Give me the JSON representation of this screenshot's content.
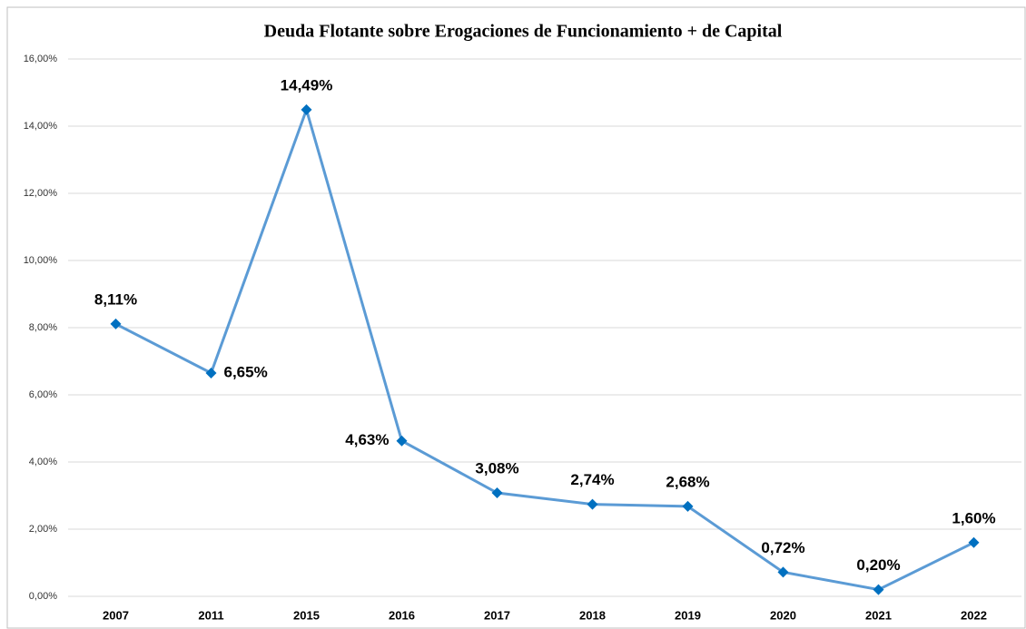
{
  "chart_data": {
    "type": "line",
    "title": "Deuda Flotante sobre Erogaciones de Funcionamiento + de Capital",
    "categories": [
      "2007",
      "2011",
      "2015",
      "2016",
      "2017",
      "2018",
      "2019",
      "2020",
      "2021",
      "2022"
    ],
    "series": [
      {
        "name": "Deuda Flotante",
        "color": "#5b9bd5",
        "values": [
          8.11,
          6.65,
          14.49,
          4.63,
          3.08,
          2.74,
          2.68,
          0.72,
          0.2,
          1.6
        ],
        "value_labels": [
          "8,11%",
          "6,65%",
          "14,49%",
          "4,63%",
          "3,08%",
          "2,74%",
          "2,68%",
          "0,72%",
          "0,20%",
          "1,60%"
        ]
      }
    ],
    "marker_color": "#0070c0",
    "ylim": [
      0,
      16
    ],
    "yticks": [
      {
        "value": 0,
        "label": "0,00%"
      },
      {
        "value": 2,
        "label": "2,00%"
      },
      {
        "value": 4,
        "label": "4,00%"
      },
      {
        "value": 6,
        "label": "6,00%"
      },
      {
        "value": 8,
        "label": "8,00%"
      },
      {
        "value": 10,
        "label": "10,00%"
      },
      {
        "value": 12,
        "label": "12,00%"
      },
      {
        "value": 14,
        "label": "14,00%"
      },
      {
        "value": 16,
        "label": "16,00%"
      }
    ],
    "grid": true
  }
}
